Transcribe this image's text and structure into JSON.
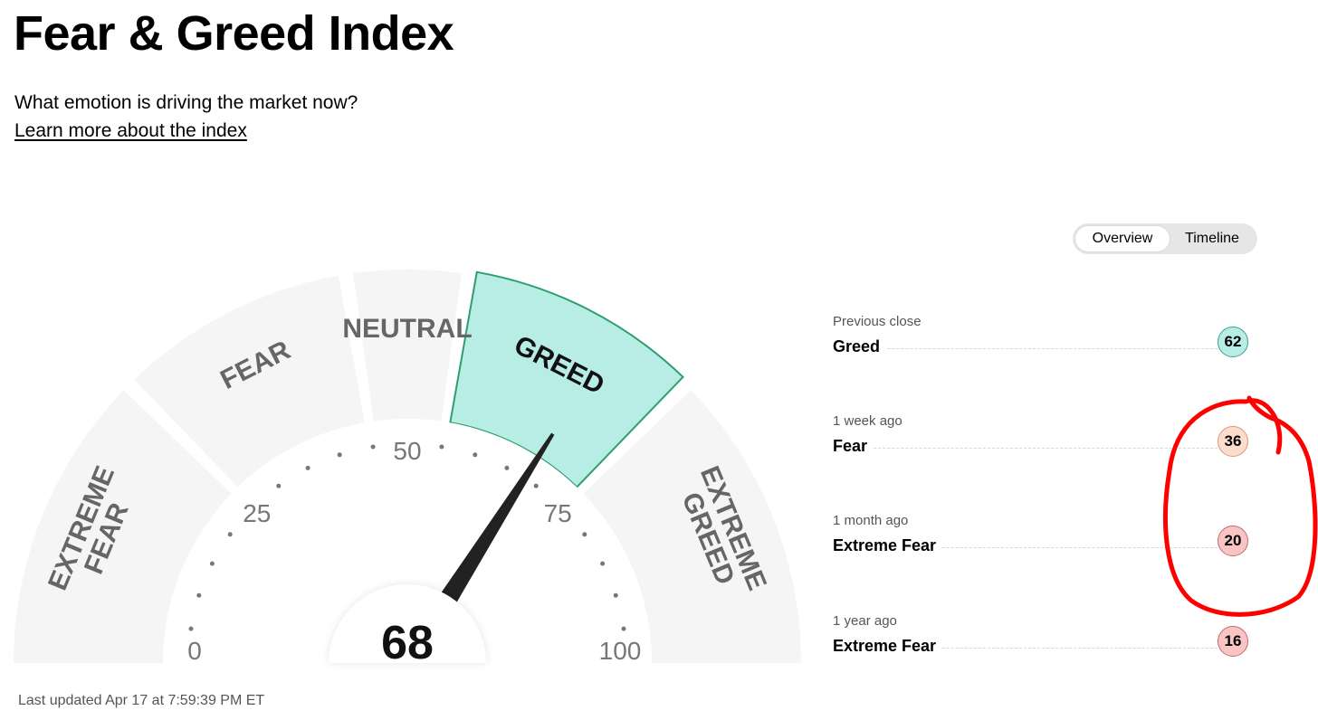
{
  "header": {
    "title": "Fear & Greed Index",
    "subtitle": "What emotion is driving the market now?",
    "learn_link": "Learn more about the index"
  },
  "view_toggle": {
    "overview_label": "Overview",
    "timeline_label": "Timeline",
    "selected": "Overview"
  },
  "gauge": {
    "value": 68,
    "value_text": "68",
    "active_segment": "GREED",
    "segments": [
      {
        "label_lines": [
          "EXTREME",
          "FEAR"
        ],
        "from": 0,
        "to": 25
      },
      {
        "label_lines": [
          "FEAR"
        ],
        "from": 25,
        "to": 45
      },
      {
        "label_lines": [
          "NEUTRAL"
        ],
        "from": 45,
        "to": 55
      },
      {
        "label_lines": [
          "GREED"
        ],
        "from": 55,
        "to": 75
      },
      {
        "label_lines": [
          "EXTREME",
          "GREED"
        ],
        "from": 75,
        "to": 100
      }
    ],
    "ticks": [
      "0",
      "25",
      "50",
      "75",
      "100"
    ]
  },
  "history": [
    {
      "period": "Previous close",
      "rating": "Greed",
      "value": "62",
      "badge_bg": "#b8ede6",
      "badge_border": "#3aa08a"
    },
    {
      "period": "1 week ago",
      "rating": "Fear",
      "value": "36",
      "badge_bg": "#fbdccd",
      "badge_border": "#d99a7a"
    },
    {
      "period": "1 month ago",
      "rating": "Extreme Fear",
      "value": "20",
      "badge_bg": "#f8c4c4",
      "badge_border": "#c46a6a"
    },
    {
      "period": "1 year ago",
      "rating": "Extreme Fear",
      "value": "16",
      "badge_bg": "#f8c4c4",
      "badge_border": "#c46a6a"
    }
  ],
  "last_updated": "Last updated Apr 17 at 7:59:39 PM ET",
  "colors": {
    "segment_inactive": "#f5f5f5",
    "segment_active_fill": "#b8ede6",
    "segment_active_stroke": "#2e9e70",
    "segment_label": "#666666",
    "segment_label_active": "#111111",
    "needle": "#222222",
    "annotation": "#ff0000"
  }
}
